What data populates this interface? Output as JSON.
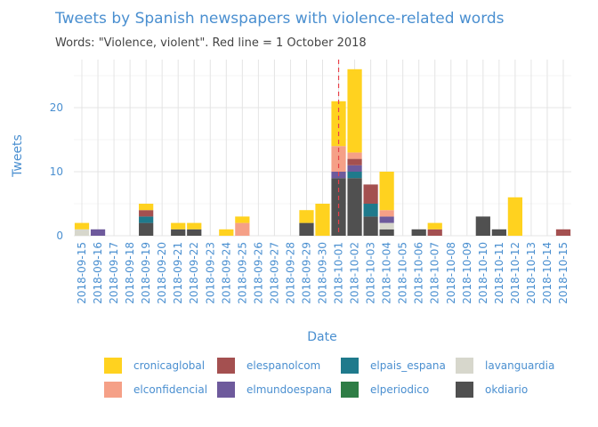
{
  "chart_data": {
    "type": "bar",
    "stacked": true,
    "title": "Tweets by Spanish newspapers with violence-related words",
    "subtitle": "Words: \"Violence, violent\". Red line = 1 October 2018",
    "xlabel": "Date",
    "ylabel": "Tweets",
    "ylim": [
      0,
      27.5
    ],
    "yticks": [
      0,
      10,
      20
    ],
    "grid": true,
    "legend_position": "bottom",
    "reference_line": {
      "x": "2018-10-01",
      "color": "#e8404a",
      "style": "dashed"
    },
    "categories": [
      "2018-09-15",
      "2018-09-16",
      "2018-09-17",
      "2018-09-18",
      "2018-09-19",
      "2018-09-20",
      "2018-09-21",
      "2018-09-22",
      "2018-09-23",
      "2018-09-24",
      "2018-09-25",
      "2018-09-26",
      "2018-09-27",
      "2018-09-28",
      "2018-09-29",
      "2018-09-30",
      "2018-10-01",
      "2018-10-02",
      "2018-10-03",
      "2018-10-04",
      "2018-10-05",
      "2018-10-06",
      "2018-10-07",
      "2018-10-08",
      "2018-10-09",
      "2018-10-10",
      "2018-10-11",
      "2018-10-12",
      "2018-10-13",
      "2018-10-14",
      "2018-10-15"
    ],
    "series": [
      {
        "name": "okdiario",
        "color": "#505050",
        "values": [
          0,
          0,
          0,
          0,
          2,
          0,
          1,
          1,
          0,
          0,
          0,
          0,
          0,
          0,
          2,
          0,
          9,
          9,
          3,
          1,
          0,
          1,
          0,
          0,
          0,
          3,
          1,
          0,
          0,
          0,
          0
        ]
      },
      {
        "name": "lavanguardia",
        "color": "#d7d7cc",
        "values": [
          1,
          0,
          0,
          0,
          0,
          0,
          0,
          0,
          0,
          0,
          0,
          0,
          0,
          0,
          0,
          0,
          0,
          0,
          0,
          1,
          0,
          0,
          0,
          0,
          0,
          0,
          0,
          0,
          0,
          0,
          0
        ]
      },
      {
        "name": "elperiodico",
        "color": "#2e7d45",
        "values": [
          0,
          0,
          0,
          0,
          0,
          0,
          0,
          0,
          0,
          0,
          0,
          0,
          0,
          0,
          0,
          0,
          0,
          0,
          0,
          0,
          0,
          0,
          0,
          0,
          0,
          0,
          0,
          0,
          0,
          0,
          0
        ]
      },
      {
        "name": "elpais_espana",
        "color": "#1f7a8c",
        "values": [
          0,
          0,
          0,
          0,
          1,
          0,
          0,
          0,
          0,
          0,
          0,
          0,
          0,
          0,
          0,
          0,
          0,
          1,
          2,
          0,
          0,
          0,
          0,
          0,
          0,
          0,
          0,
          0,
          0,
          0,
          0
        ]
      },
      {
        "name": "elmundoespana",
        "color": "#6e5a9c",
        "values": [
          0,
          1,
          0,
          0,
          0,
          0,
          0,
          0,
          0,
          0,
          0,
          0,
          0,
          0,
          0,
          0,
          1,
          1,
          0,
          1,
          0,
          0,
          0,
          0,
          0,
          0,
          0,
          0,
          0,
          0,
          0
        ]
      },
      {
        "name": "elespanolcom",
        "color": "#a45050",
        "values": [
          0,
          0,
          0,
          0,
          1,
          0,
          0,
          0,
          0,
          0,
          0,
          0,
          0,
          0,
          0,
          0,
          0,
          1,
          3,
          0,
          0,
          0,
          1,
          0,
          0,
          0,
          0,
          0,
          0,
          0,
          1
        ]
      },
      {
        "name": "elconfidencial",
        "color": "#f5a087",
        "values": [
          0,
          0,
          0,
          0,
          0,
          0,
          0,
          0,
          0,
          0,
          2,
          0,
          0,
          0,
          0,
          0,
          4,
          1,
          0,
          1,
          0,
          0,
          0,
          0,
          0,
          0,
          0,
          0,
          0,
          0,
          0
        ]
      },
      {
        "name": "cronicaglobal",
        "color": "#ffd21f",
        "values": [
          1,
          0,
          0,
          0,
          1,
          0,
          1,
          1,
          0,
          1,
          1,
          0,
          0,
          0,
          2,
          5,
          7,
          13,
          0,
          6,
          0,
          0,
          1,
          0,
          0,
          0,
          0,
          6,
          0,
          0,
          0
        ]
      }
    ],
    "legend_order": [
      "cronicaglobal",
      "elconfidencial",
      "elespanolcom",
      "elmundoespana",
      "elpais_espana",
      "elperiodico",
      "lavanguardia",
      "okdiario"
    ]
  }
}
